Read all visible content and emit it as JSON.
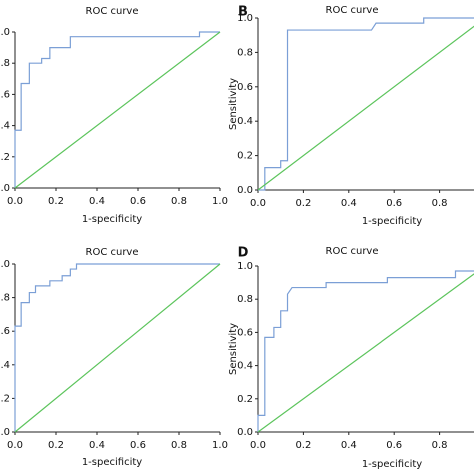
{
  "chart_data": [
    {
      "type": "line",
      "title": "ROC curve",
      "xlabel": "1-specificity",
      "xlim": [
        0,
        1
      ],
      "ylim": [
        0,
        1
      ],
      "xticks": [
        {
          "value": 0,
          "label": "0.0"
        },
        {
          "value": 0.2,
          "label": "0.2"
        },
        {
          "value": 0.4,
          "label": "0.4"
        },
        {
          "value": 0.6,
          "label": "0.6"
        },
        {
          "value": 0.8,
          "label": "0.8"
        },
        {
          "value": 1,
          "label": "1.0"
        }
      ],
      "yticks": [
        {
          "value": 0,
          "label": "0.0"
        },
        {
          "value": 0.2,
          "label": "0.2"
        },
        {
          "value": 0.4,
          "label": "0.4"
        },
        {
          "value": 0.6,
          "label": "0.6"
        },
        {
          "value": 0.8,
          "label": "0.8"
        },
        {
          "value": 1,
          "label": "1.0"
        }
      ],
      "series": [
        {
          "color": "#7b9fd6",
          "x": [
            0,
            0,
            0.03,
            0.03,
            0.07,
            0.07,
            0.13,
            0.13,
            0.17,
            0.17,
            0.27,
            0.27,
            0.9,
            0.9,
            1
          ],
          "values": [
            0,
            0.37,
            0.37,
            0.67,
            0.67,
            0.8,
            0.8,
            0.83,
            0.83,
            0.9,
            0.9,
            0.97,
            0.97,
            1,
            1
          ]
        },
        {
          "color": "#5cc45c",
          "x": [
            0,
            1
          ],
          "values": [
            0,
            1
          ]
        }
      ]
    },
    {
      "type": "line",
      "title": "ROC curve",
      "panel": "B",
      "xlabel": "1-specificity",
      "ylabel": "Sensitivity",
      "xlim": [
        0,
        1
      ],
      "ylim": [
        0,
        1
      ],
      "xticks": [
        {
          "value": 0,
          "label": "0.0"
        },
        {
          "value": 0.2,
          "label": "0.2"
        },
        {
          "value": 0.4,
          "label": "0.4"
        },
        {
          "value": 0.6,
          "label": "0.6"
        },
        {
          "value": 0.8,
          "label": "0.8"
        }
      ],
      "yticks": [
        {
          "value": 0,
          "label": "0.0"
        },
        {
          "value": 0.2,
          "label": "0.2"
        },
        {
          "value": 0.4,
          "label": "0.4"
        },
        {
          "value": 0.6,
          "label": "0.6"
        },
        {
          "value": 0.8,
          "label": "0.8"
        },
        {
          "value": 1,
          "label": "1.0"
        }
      ],
      "series": [
        {
          "color": "#7b9fd6",
          "x": [
            0,
            0.03,
            0.03,
            0.1,
            0.1,
            0.13,
            0.13,
            0.5,
            0.52,
            0.73,
            0.73,
            1
          ],
          "values": [
            0,
            0,
            0.13,
            0.13,
            0.17,
            0.17,
            0.93,
            0.93,
            0.97,
            0.97,
            1,
            1
          ]
        },
        {
          "color": "#5cc45c",
          "x": [
            0,
            1
          ],
          "values": [
            0,
            1
          ]
        }
      ]
    },
    {
      "type": "line",
      "title": "ROC curve",
      "xlabel": "1-specificity",
      "xlim": [
        0,
        1
      ],
      "ylim": [
        0,
        1
      ],
      "xticks": [
        {
          "value": 0,
          "label": "0.0"
        },
        {
          "value": 0.2,
          "label": "0.2"
        },
        {
          "value": 0.4,
          "label": "0.4"
        },
        {
          "value": 0.6,
          "label": "0.6"
        },
        {
          "value": 0.8,
          "label": "0.8"
        },
        {
          "value": 1,
          "label": "1.0"
        }
      ],
      "yticks": [
        {
          "value": 0,
          "label": "0.0"
        },
        {
          "value": 0.2,
          "label": "0.2"
        },
        {
          "value": 0.4,
          "label": "0.4"
        },
        {
          "value": 0.6,
          "label": "0.6"
        },
        {
          "value": 0.8,
          "label": "0.8"
        },
        {
          "value": 1,
          "label": "1.0"
        }
      ],
      "series": [
        {
          "color": "#7b9fd6",
          "x": [
            0,
            0,
            0.03,
            0.03,
            0.07,
            0.07,
            0.1,
            0.1,
            0.17,
            0.17,
            0.23,
            0.23,
            0.27,
            0.27,
            0.3,
            0.3,
            1
          ],
          "values": [
            0,
            0.63,
            0.63,
            0.77,
            0.77,
            0.83,
            0.83,
            0.87,
            0.87,
            0.9,
            0.9,
            0.93,
            0.93,
            0.97,
            0.97,
            1,
            1
          ]
        },
        {
          "color": "#5cc45c",
          "x": [
            0,
            1
          ],
          "values": [
            0,
            1
          ]
        }
      ]
    },
    {
      "type": "line",
      "title": "ROC curve",
      "panel": "D",
      "xlabel": "1-specificity",
      "ylabel": "Sensitivity",
      "xlim": [
        0,
        1
      ],
      "ylim": [
        0,
        1
      ],
      "xticks": [
        {
          "value": 0,
          "label": "0.0"
        },
        {
          "value": 0.2,
          "label": "0.2"
        },
        {
          "value": 0.4,
          "label": "0.4"
        },
        {
          "value": 0.6,
          "label": "0.6"
        },
        {
          "value": 0.8,
          "label": "0.8"
        }
      ],
      "yticks": [
        {
          "value": 0,
          "label": "0.0"
        },
        {
          "value": 0.2,
          "label": "0.2"
        },
        {
          "value": 0.4,
          "label": "0.4"
        },
        {
          "value": 0.6,
          "label": "0.6"
        },
        {
          "value": 0.8,
          "label": "0.8"
        },
        {
          "value": 1,
          "label": "1.0"
        }
      ],
      "series": [
        {
          "color": "#7b9fd6",
          "x": [
            0,
            0,
            0.03,
            0.03,
            0.07,
            0.07,
            0.1,
            0.1,
            0.13,
            0.13,
            0.15,
            0.3,
            0.3,
            0.57,
            0.57,
            0.87,
            0.87,
            1
          ],
          "values": [
            0,
            0.1,
            0.1,
            0.57,
            0.57,
            0.63,
            0.63,
            0.73,
            0.73,
            0.83,
            0.87,
            0.87,
            0.9,
            0.9,
            0.93,
            0.93,
            0.97,
            0.97
          ]
        },
        {
          "color": "#5cc45c",
          "x": [
            0,
            1
          ],
          "values": [
            0,
            1
          ]
        }
      ]
    }
  ]
}
